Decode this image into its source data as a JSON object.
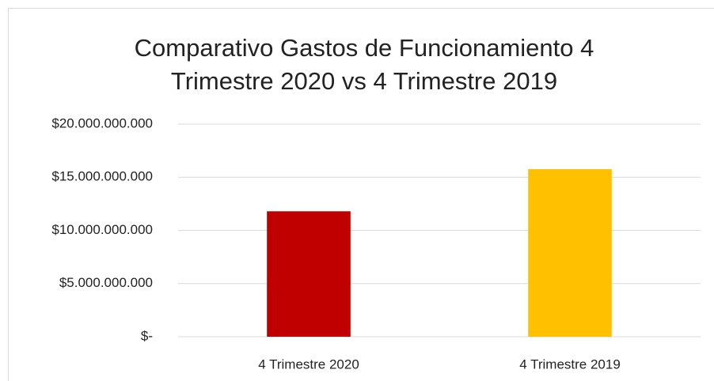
{
  "chart_data": {
    "type": "bar",
    "title": "Comparativo Gastos de Funcionamiento 4 Trimestre 2020 vs 4 Trimestre 2019",
    "categories": [
      "4 Trimestre 2020",
      "4 Trimestre 2019"
    ],
    "values": [
      11800000000,
      15760000000
    ],
    "colors": [
      "#c00000",
      "#ffc000"
    ],
    "ylim": [
      0,
      20000000000
    ],
    "yticks": [
      {
        "value": 0,
        "label": "$-"
      },
      {
        "value": 5000000000,
        "label": "$5.000.000.000"
      },
      {
        "value": 10000000000,
        "label": "$10.000.000.000"
      },
      {
        "value": 15000000000,
        "label": "$15.000.000.000"
      },
      {
        "value": 20000000000,
        "label": "$20.000.000.000"
      }
    ],
    "grid": true
  }
}
